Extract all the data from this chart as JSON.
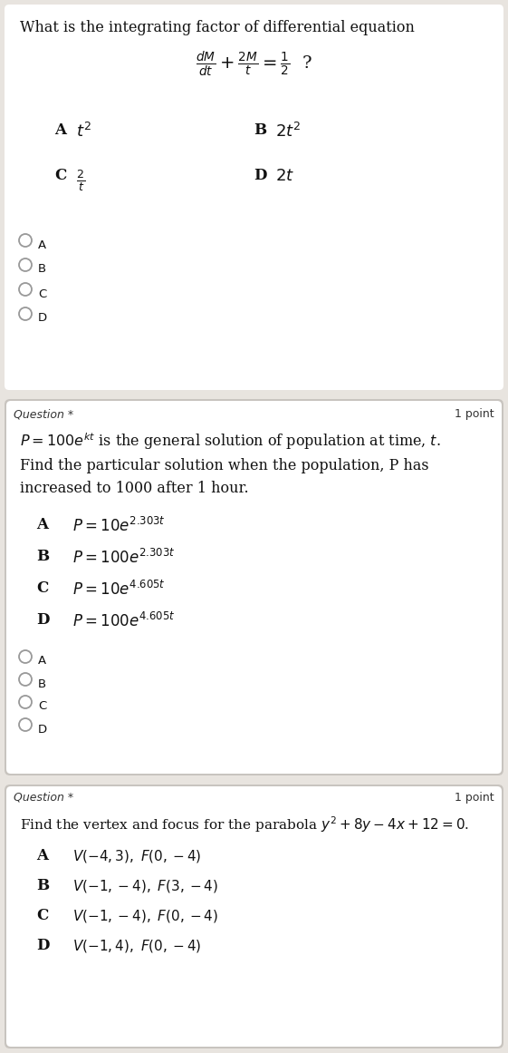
{
  "bg_color": "#e8e4df",
  "card_color": "#f2f0ed",
  "white": "#ffffff",
  "text_color": "#1a1a1a",
  "dark_text": "#111111",
  "q1_title": "What is the integrating factor of differential equation",
  "q1_radio": [
    "A",
    "B",
    "C",
    "D"
  ],
  "q2_label": "Question *",
  "q2_points": "1 point",
  "q2_radio": [
    "A",
    "B",
    "C",
    "D"
  ],
  "q3_label": "Question *",
  "q3_points": "1 point"
}
